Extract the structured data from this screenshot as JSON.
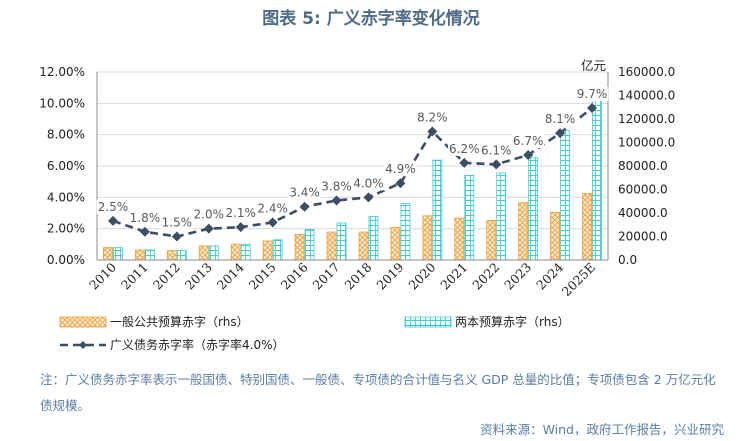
{
  "title": "图表 5:   广义赤字率变化情况",
  "note": "注：广义债务赤字率表示一般国债、特别国债、一般债、专项债的合计值与名义 GDP 总量的比值；专项债包含 2 万亿元化债规模。",
  "source": "资料来源：Wind，政府工作报告，兴业研究",
  "colors": {
    "line": "#3d4f66",
    "orange": "#f39c35",
    "cyan": "#39cfd0",
    "text": "#5a7ea6"
  },
  "chart_data": {
    "type": "bar+line",
    "categories": [
      "2010",
      "2011",
      "2012",
      "2013",
      "2014",
      "2015",
      "2016",
      "2017",
      "2018",
      "2019",
      "2020",
      "2021",
      "2022",
      "2023",
      "2024",
      "2025E"
    ],
    "left_axis": {
      "ylim": [
        0,
        12
      ],
      "ticks": [
        "0.00%",
        "2.00%",
        "4.00%",
        "6.00%",
        "8.00%",
        "10.00%",
        "12.00%"
      ]
    },
    "right_axis": {
      "ylim": [
        0,
        160000
      ],
      "unit": "亿元",
      "ticks": [
        "0.0",
        "20000.0",
        "40000.0",
        "60000.0",
        "80000.0",
        "100000.0",
        "120000.0",
        "140000.0",
        "160000.0"
      ]
    },
    "series": [
      {
        "name": "一般公共预算赤字（rhs）",
        "type": "bar",
        "axis": "right",
        "values": [
          10500,
          8500,
          8000,
          12000,
          13500,
          16200,
          21800,
          23800,
          23800,
          27600,
          37600,
          35700,
          33700,
          48800,
          40600,
          56600
        ]
      },
      {
        "name": "两本预算赤字（rhs）",
        "type": "bar",
        "axis": "right",
        "values": [
          10500,
          8500,
          8000,
          12000,
          13500,
          17200,
          26000,
          31500,
          37000,
          48000,
          85000,
          72000,
          74000,
          87000,
          110000,
          138000
        ]
      },
      {
        "name": "广义债务赤字率（赤字率4.0%）",
        "type": "line",
        "axis": "left",
        "values": [
          2.5,
          1.8,
          1.5,
          2.0,
          2.1,
          2.4,
          3.4,
          3.8,
          4.0,
          4.9,
          8.2,
          6.2,
          6.1,
          6.7,
          8.1,
          9.7
        ],
        "labels": [
          "2.5%",
          "1.8%",
          "1.5%",
          "2.0%",
          "2.1%",
          "2.4%",
          "3.4%",
          "3.8%",
          "4.0%",
          "4.9%",
          "8.2%",
          "6.2%",
          "6.1%",
          "6.7%",
          "8.1%",
          "9.7%"
        ]
      }
    ]
  }
}
